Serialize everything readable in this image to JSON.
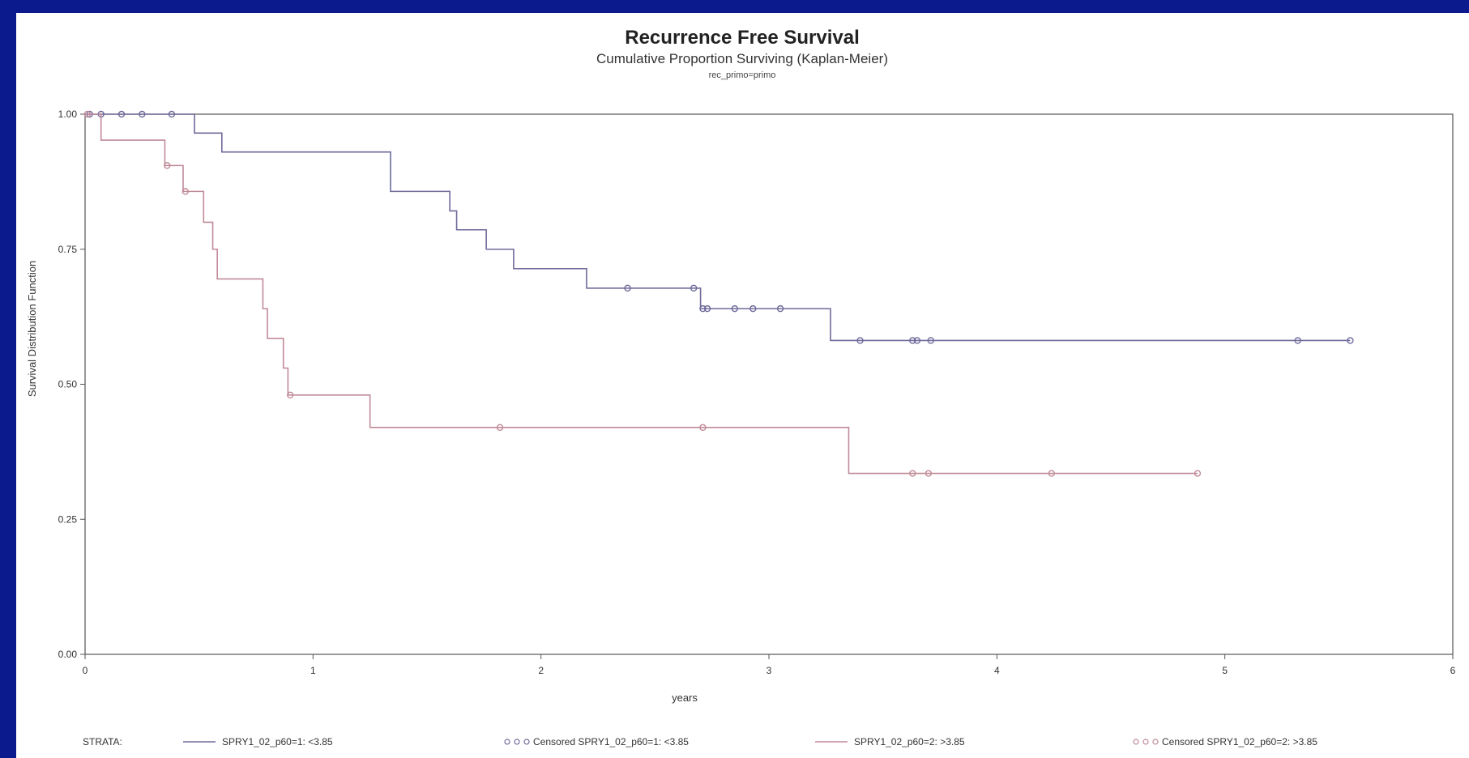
{
  "chart_data": {
    "type": "line",
    "title": "Recurrence Free Survival",
    "subtitle": "Cumulative Proportion Surviving (Kaplan-Meier)",
    "subsubtitle": "rec_primo=primo",
    "xlabel": "years",
    "ylabel": "Survival Distribution Function",
    "xlim": [
      0,
      6
    ],
    "ylim": [
      0,
      1
    ],
    "x_ticks": [
      "0",
      "1",
      "2",
      "3",
      "4",
      "5",
      "6"
    ],
    "y_ticks": [
      "0.00",
      "0.25",
      "0.50",
      "0.75",
      "1.00"
    ],
    "legend_title": "STRATA:",
    "legend_placement": "bottom",
    "grid": false,
    "series": [
      {
        "name": "SPRY1_02_p60=1: <3.85",
        "color": "#6e6a9a",
        "steps": [
          [
            0,
            1.0
          ],
          [
            0.48,
            0.965
          ],
          [
            0.6,
            0.93
          ],
          [
            1.34,
            0.857
          ],
          [
            1.6,
            0.821
          ],
          [
            1.63,
            0.786
          ],
          [
            1.76,
            0.75
          ],
          [
            1.88,
            0.714
          ],
          [
            2.2,
            0.678
          ],
          [
            2.7,
            0.64
          ],
          [
            3.27,
            0.581
          ],
          [
            5.55,
            0.581
          ]
        ],
        "censored": [
          [
            0.02,
            1.0
          ],
          [
            0.07,
            1.0
          ],
          [
            0.16,
            1.0
          ],
          [
            0.25,
            1.0
          ],
          [
            0.38,
            1.0
          ],
          [
            2.38,
            0.678
          ],
          [
            2.67,
            0.678
          ],
          [
            2.71,
            0.64
          ],
          [
            2.73,
            0.64
          ],
          [
            2.85,
            0.64
          ],
          [
            2.93,
            0.64
          ],
          [
            3.05,
            0.64
          ],
          [
            3.4,
            0.581
          ],
          [
            3.63,
            0.581
          ],
          [
            3.65,
            0.581
          ],
          [
            3.71,
            0.581
          ],
          [
            5.32,
            0.581
          ],
          [
            5.55,
            0.581
          ]
        ]
      },
      {
        "name": "SPRY1_02_p60=2: >3.85",
        "color": "#c08a98",
        "steps": [
          [
            0,
            1.0
          ],
          [
            0.07,
            0.952
          ],
          [
            0.35,
            0.905
          ],
          [
            0.43,
            0.857
          ],
          [
            0.52,
            0.8
          ],
          [
            0.56,
            0.75
          ],
          [
            0.58,
            0.695
          ],
          [
            0.78,
            0.64
          ],
          [
            0.8,
            0.585
          ],
          [
            0.87,
            0.53
          ],
          [
            0.89,
            0.48
          ],
          [
            1.25,
            0.42
          ],
          [
            3.35,
            0.335
          ],
          [
            4.88,
            0.335
          ]
        ],
        "censored": [
          [
            0.01,
            1.0
          ],
          [
            0.36,
            0.905
          ],
          [
            0.44,
            0.857
          ],
          [
            0.9,
            0.48
          ],
          [
            1.82,
            0.42
          ],
          [
            2.71,
            0.42
          ],
          [
            3.63,
            0.335
          ],
          [
            3.7,
            0.335
          ],
          [
            4.24,
            0.335
          ],
          [
            4.88,
            0.335
          ]
        ]
      }
    ],
    "legend": [
      {
        "label": "SPRY1_02_p60=1: <3.85",
        "kind": "line",
        "series": 0
      },
      {
        "label": "Censored SPRY1_02_p60=1: <3.85",
        "kind": "censored",
        "series": 0
      },
      {
        "label": "SPRY1_02_p60=2: >3.85",
        "kind": "line",
        "series": 1
      },
      {
        "label": "Censored SPRY1_02_p60=2: >3.85",
        "kind": "censored",
        "series": 1
      }
    ]
  }
}
